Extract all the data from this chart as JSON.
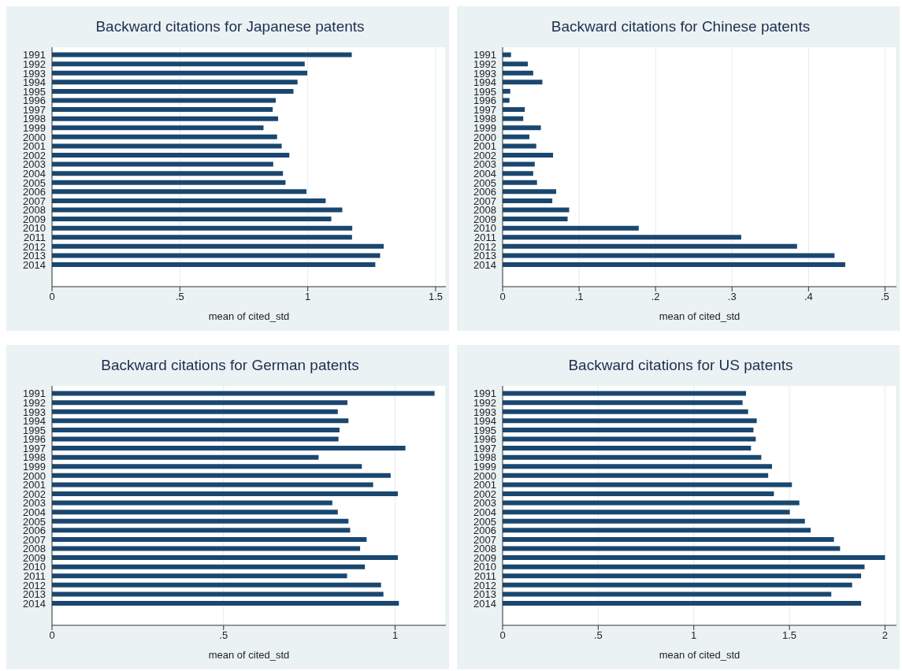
{
  "chart_data": [
    {
      "type": "bar",
      "orientation": "horizontal",
      "title": "Backward citations for Japanese patents",
      "xlabel": "mean of cited_std",
      "categories": [
        "1991",
        "1992",
        "1993",
        "1994",
        "1995",
        "1996",
        "1997",
        "1998",
        "1999",
        "2000",
        "2001",
        "2002",
        "2003",
        "2004",
        "2005",
        "2006",
        "2007",
        "2008",
        "2009",
        "2010",
        "2011",
        "2012",
        "2013",
        "2014"
      ],
      "values": [
        1.172,
        0.988,
        0.998,
        0.96,
        0.944,
        0.875,
        0.863,
        0.884,
        0.827,
        0.88,
        0.898,
        0.928,
        0.865,
        0.903,
        0.913,
        0.995,
        1.07,
        1.135,
        1.092,
        1.174,
        1.173,
        1.297,
        1.283,
        1.264
      ],
      "color": "#1a476f",
      "xlim": [
        0,
        1.54
      ],
      "xticks": [
        0,
        {
          "value": 0.5,
          "label": ".5"
        },
        1,
        1.5
      ],
      "grid": "x"
    },
    {
      "type": "bar",
      "orientation": "horizontal",
      "title": "Backward citations for Chinese patents",
      "xlabel": "mean of cited_std",
      "categories": [
        "1991",
        "1992",
        "1993",
        "1994",
        "1995",
        "1996",
        "1997",
        "1998",
        "1999",
        "2000",
        "2001",
        "2002",
        "2003",
        "2004",
        "2005",
        "2006",
        "2007",
        "2008",
        "2009",
        "2010",
        "2011",
        "2012",
        "2013",
        "2014"
      ],
      "values": [
        0.011,
        0.033,
        0.04,
        0.052,
        0.01,
        0.009,
        0.029,
        0.027,
        0.05,
        0.035,
        0.044,
        0.066,
        0.042,
        0.04,
        0.045,
        0.07,
        0.065,
        0.087,
        0.085,
        0.178,
        0.312,
        0.385,
        0.434,
        0.448
      ],
      "color": "#1a476f",
      "xlim": [
        0,
        0.515
      ],
      "xticks": [
        0,
        {
          "value": 0.1,
          "label": ".1"
        },
        {
          "value": 0.2,
          "label": ".2"
        },
        {
          "value": 0.3,
          "label": ".3"
        },
        {
          "value": 0.4,
          "label": ".4"
        },
        {
          "value": 0.5,
          "label": ".5"
        }
      ],
      "grid": "x"
    },
    {
      "type": "bar",
      "orientation": "horizontal",
      "title": "Backward citations for German patents",
      "xlabel": "mean of cited_std",
      "categories": [
        "1991",
        "1992",
        "1993",
        "1994",
        "1995",
        "1996",
        "1997",
        "1998",
        "1999",
        "2000",
        "2001",
        "2002",
        "2003",
        "2004",
        "2005",
        "2006",
        "2007",
        "2008",
        "2009",
        "2010",
        "2011",
        "2012",
        "2013",
        "2014"
      ],
      "values": [
        1.115,
        0.861,
        0.833,
        0.864,
        0.838,
        0.835,
        1.03,
        0.777,
        0.903,
        0.987,
        0.936,
        1.008,
        0.817,
        0.833,
        0.864,
        0.869,
        0.917,
        0.898,
        1.008,
        0.912,
        0.86,
        0.959,
        0.966,
        1.011
      ],
      "color": "#1a476f",
      "xlim": [
        0,
        1.148
      ],
      "xticks": [
        0,
        {
          "value": 0.5,
          "label": ".5"
        },
        1
      ],
      "grid": "x"
    },
    {
      "type": "bar",
      "orientation": "horizontal",
      "title": "Backward citations for US patents",
      "xlabel": "mean of cited_std",
      "categories": [
        "1991",
        "1992",
        "1993",
        "1994",
        "1995",
        "1996",
        "1997",
        "1998",
        "1999",
        "2000",
        "2001",
        "2002",
        "2003",
        "2004",
        "2005",
        "2006",
        "2007",
        "2008",
        "2009",
        "2010",
        "2011",
        "2012",
        "2013",
        "2014"
      ],
      "values": [
        1.273,
        1.255,
        1.284,
        1.329,
        1.312,
        1.324,
        1.299,
        1.353,
        1.409,
        1.389,
        1.513,
        1.419,
        1.552,
        1.502,
        1.581,
        1.611,
        1.733,
        1.765,
        2.0,
        1.893,
        1.875,
        1.828,
        1.719,
        1.875
      ],
      "color": "#1a476f",
      "xlim": [
        0,
        2.06
      ],
      "xticks": [
        0,
        {
          "value": 0.5,
          "label": ".5"
        },
        1,
        1.5,
        2
      ],
      "grid": "x"
    }
  ]
}
